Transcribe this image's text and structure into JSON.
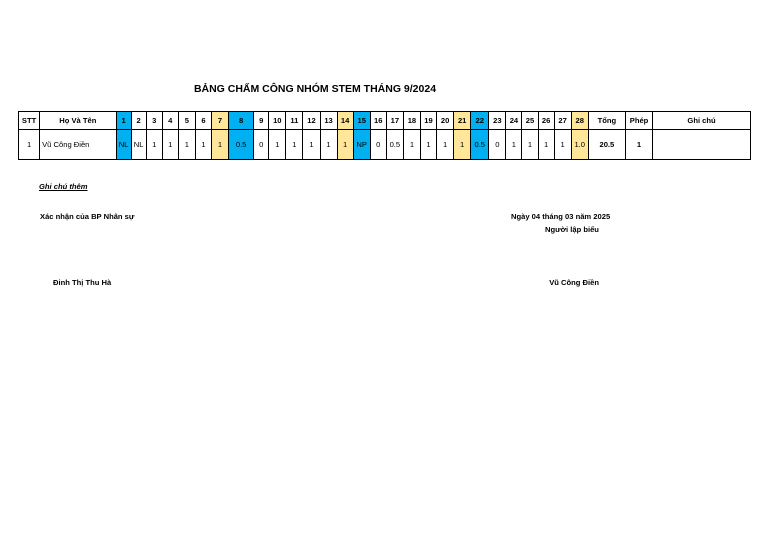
{
  "title": "BẢNG CHẤM CÔNG NHÓM STEM THÁNG 9/2024",
  "headers": {
    "stt": "STT",
    "name": "Họ Và Tên",
    "days": [
      "1",
      "2",
      "3",
      "4",
      "5",
      "6",
      "7",
      "8",
      "9",
      "10",
      "11",
      "12",
      "13",
      "14",
      "15",
      "16",
      "17",
      "18",
      "19",
      "20",
      "21",
      "22",
      "23",
      "24",
      "25",
      "26",
      "27",
      "28"
    ],
    "total": "Tổng",
    "leave": "Phép",
    "note": "Ghi chú"
  },
  "day_colors": {
    "blue": [
      "1",
      "8",
      "15",
      "22"
    ],
    "yellow": [
      "7",
      "14",
      "21",
      "28"
    ],
    "blue_hex": "#00b0f0",
    "yellow_hex": "#ffe699"
  },
  "rows": [
    {
      "stt": "1",
      "name": "Vũ Công Điền",
      "days": [
        "NL",
        "NL",
        "1",
        "1",
        "1",
        "1",
        "1",
        "0.5",
        "0",
        "1",
        "1",
        "1",
        "1",
        "1",
        "NP",
        "0",
        "0.5",
        "1",
        "1",
        "1",
        "1",
        "0.5",
        "0",
        "1",
        "1",
        "1",
        "1",
        "1.0"
      ],
      "total": "20.5",
      "leave": "1",
      "note": ""
    }
  ],
  "extra_note": "Ghi chú thêm",
  "left_sign_title": "Xác nhận của BP Nhân sự",
  "right_date": "Ngày 04 tháng 03  năm 2025",
  "right_sign_title": "Người lập biểu",
  "left_signer": "Đinh Thị Thu Hà",
  "right_signer": "Vũ Công Điền"
}
